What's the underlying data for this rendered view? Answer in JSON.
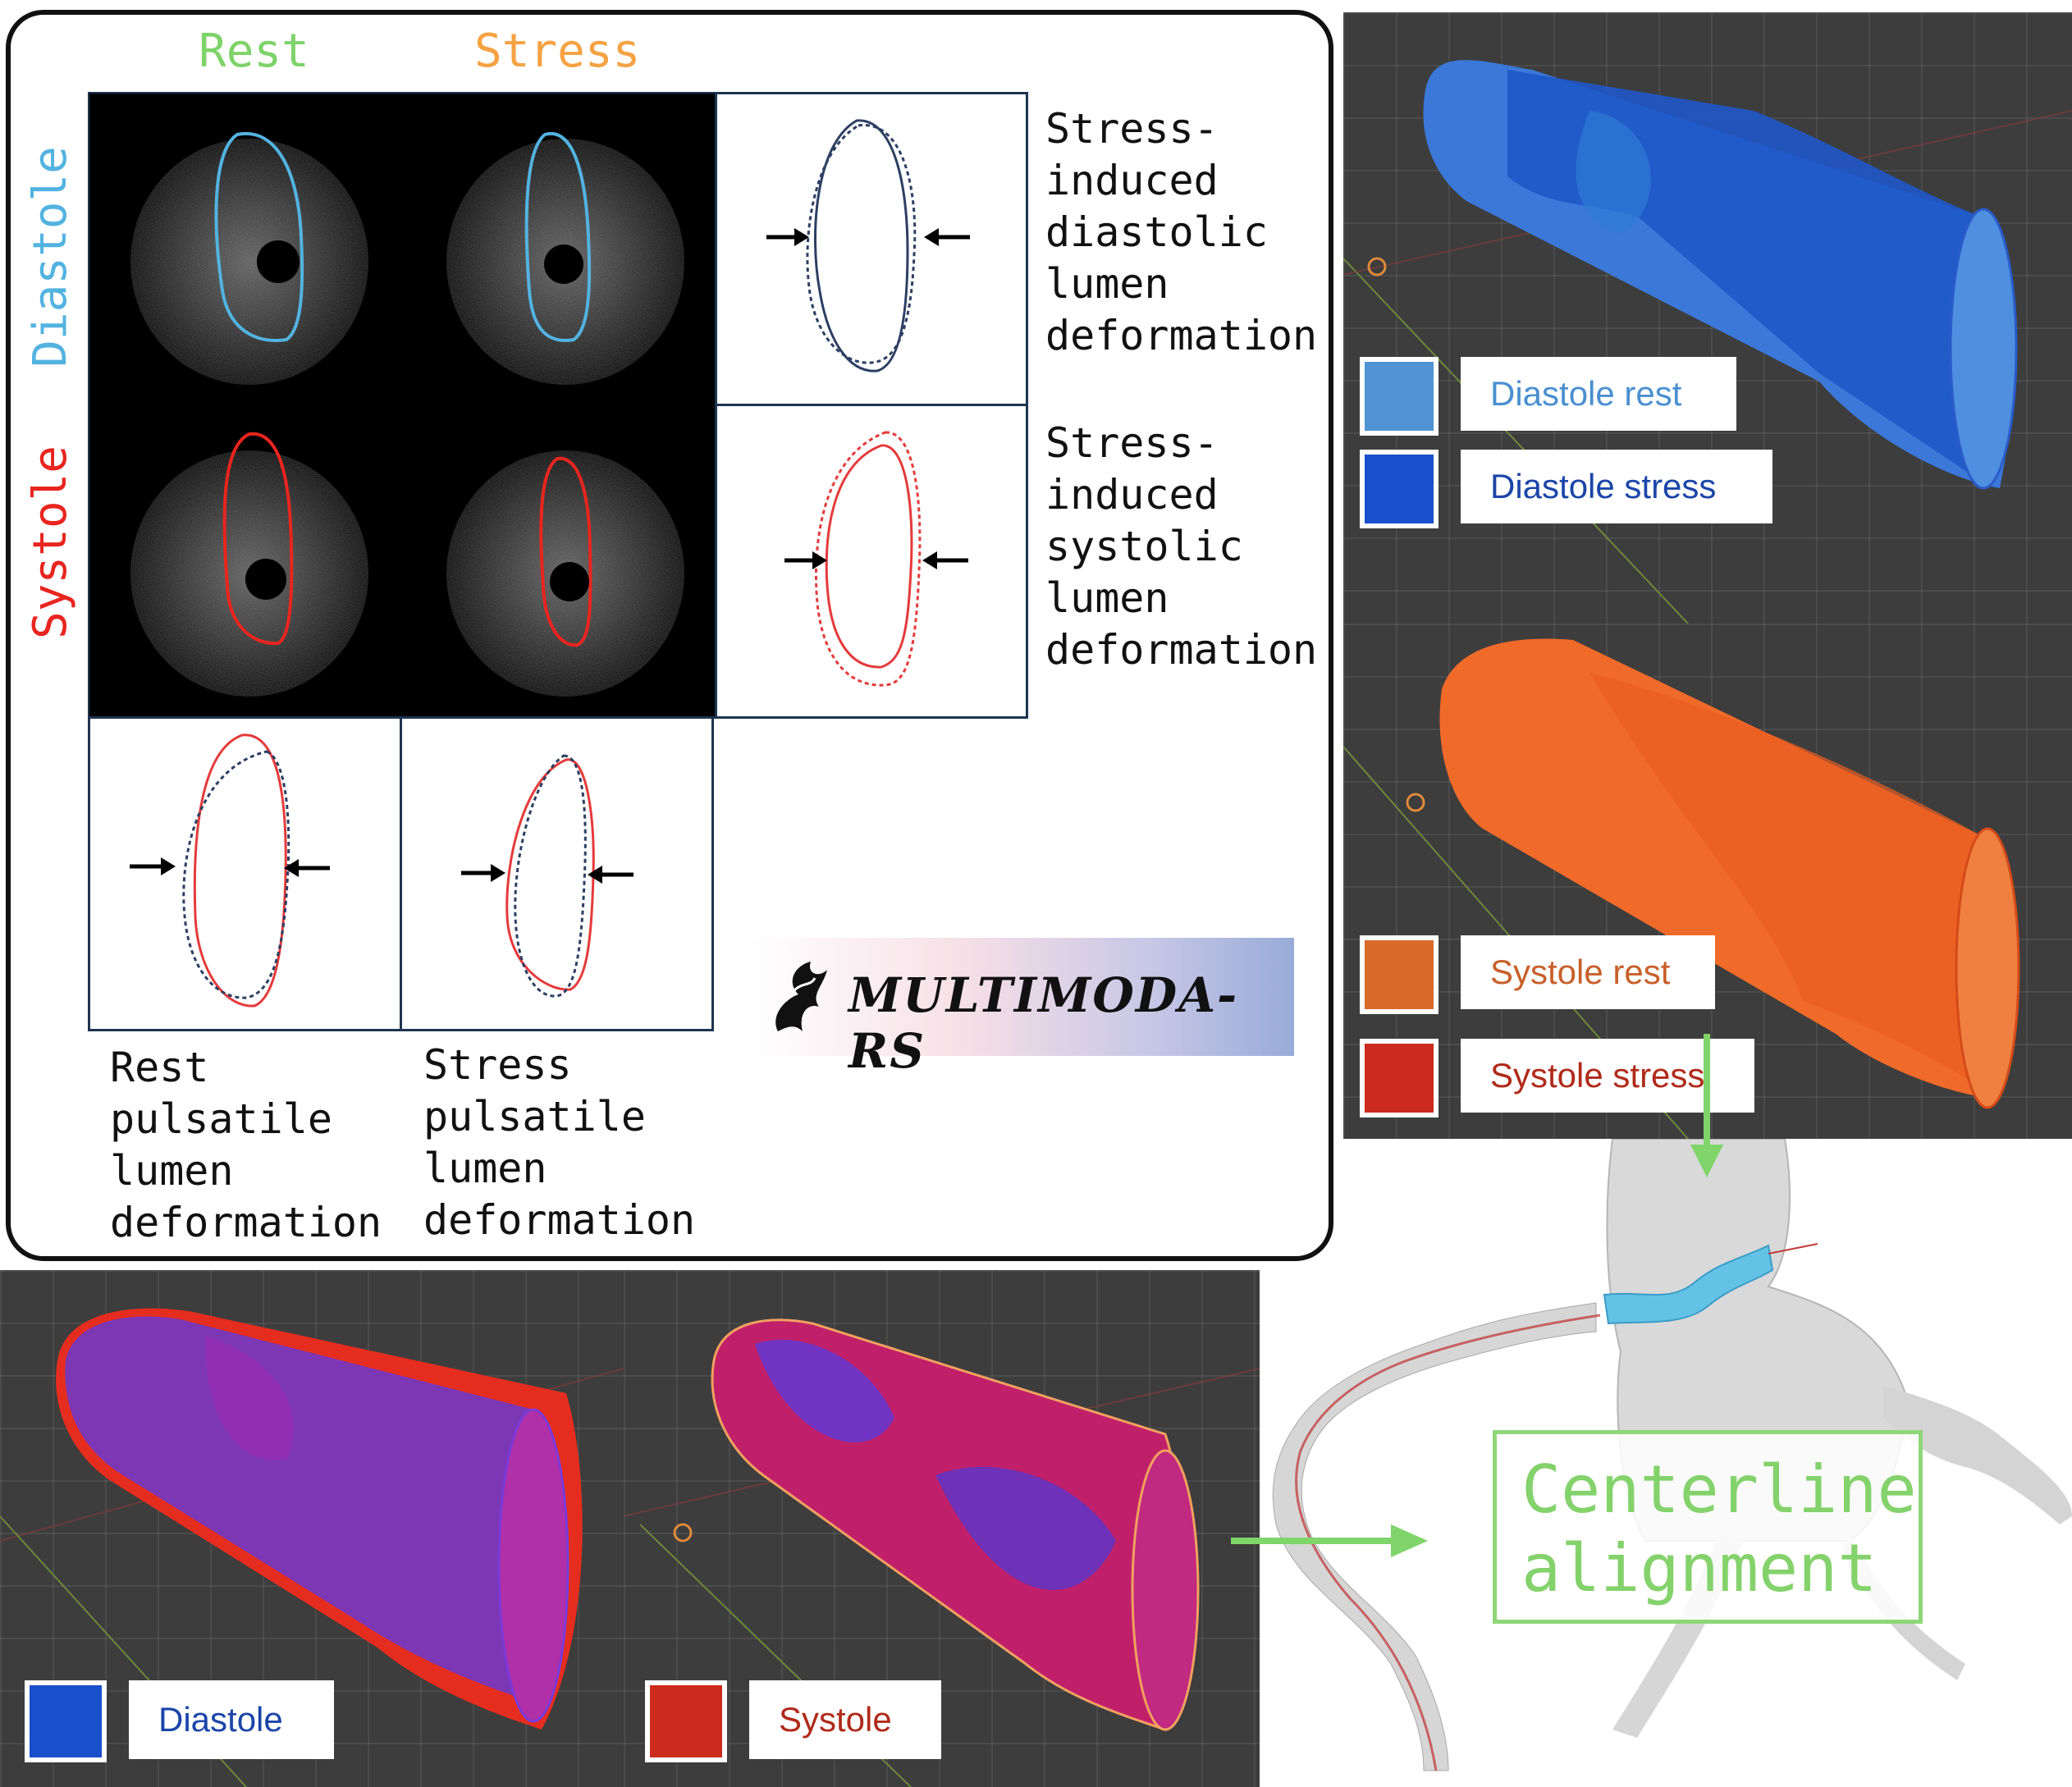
{
  "columns": {
    "rest": "Rest",
    "stress": "Stress"
  },
  "rows": {
    "diastole": "Diastole",
    "systole": "Systole"
  },
  "descriptions": {
    "diastolic": "Stress-\ninduced\ndiastolic\nlumen\ndeformation",
    "systolic": "Stress-\ninduced\nsystolic\nlumen\ndeformation",
    "rest_pulsatile": "Rest\npulsatile\nlumen\ndeformation",
    "stress_pulsatile": "Stress\npulsatile\nlumen\ndeformation"
  },
  "logo": {
    "text": "MULTIMODA-RS"
  },
  "legends": {
    "diastole_rest": "Diastole rest",
    "diastole_stress": "Diastole stress",
    "systole_rest": "Systole rest",
    "systole_stress": "Systole stress",
    "diastole": "Diastole",
    "systole": "Systole"
  },
  "centerline": {
    "label": "Centerline\nalignment"
  },
  "colors": {
    "rest_green": "#7ed36a",
    "stress_orange": "#f5a243",
    "diastole_blue": "#53b3e0",
    "systole_red": "#e8251f",
    "diastole_rest_swatch": "#4f93d3",
    "diastole_stress_swatch": "#1a4fcc",
    "systole_rest_swatch": "#d96a2a",
    "systole_stress_swatch": "#cc2a1c",
    "diastole_rest_text": "#4a8fd0",
    "diastole_stress_text": "#1b45a8",
    "systole_rest_text": "#c8602a",
    "systole_stress_text": "#b02a1a",
    "centerline_green": "#84d26c"
  }
}
